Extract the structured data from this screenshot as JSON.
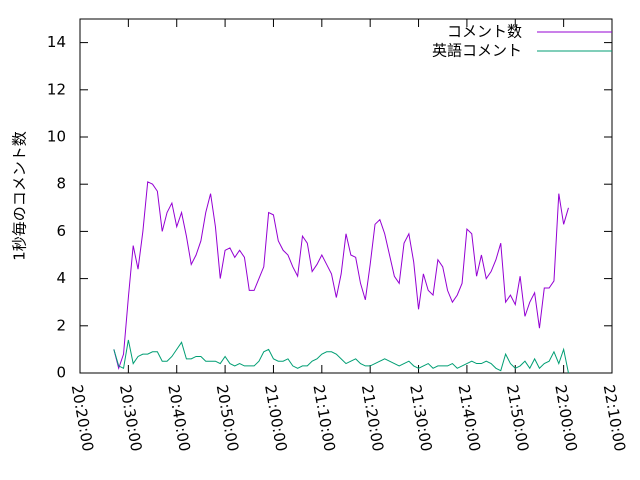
{
  "chart_data": {
    "type": "line",
    "y_label": "1秒毎のコメント数",
    "x": [
      "20:27:00",
      "20:28:00",
      "20:29:00",
      "20:30:00",
      "20:31:00",
      "20:32:00",
      "20:33:00",
      "20:34:00",
      "20:35:00",
      "20:36:00",
      "20:37:00",
      "20:38:00",
      "20:39:00",
      "20:40:00",
      "20:41:00",
      "20:42:00",
      "20:43:00",
      "20:44:00",
      "20:45:00",
      "20:46:00",
      "20:47:00",
      "20:48:00",
      "20:49:00",
      "20:50:00",
      "20:51:00",
      "20:52:00",
      "20:53:00",
      "20:54:00",
      "20:55:00",
      "20:56:00",
      "20:57:00",
      "20:58:00",
      "20:59:00",
      "21:00:00",
      "21:01:00",
      "21:02:00",
      "21:03:00",
      "21:04:00",
      "21:05:00",
      "21:06:00",
      "21:07:00",
      "21:08:00",
      "21:09:00",
      "21:10:00",
      "21:11:00",
      "21:12:00",
      "21:13:00",
      "21:14:00",
      "21:15:00",
      "21:16:00",
      "21:17:00",
      "21:18:00",
      "21:19:00",
      "21:20:00",
      "21:21:00",
      "21:22:00",
      "21:23:00",
      "21:24:00",
      "21:25:00",
      "21:26:00",
      "21:27:00",
      "21:28:00",
      "21:29:00",
      "21:30:00",
      "21:31:00",
      "21:32:00",
      "21:33:00",
      "21:34:00",
      "21:35:00",
      "21:36:00",
      "21:37:00",
      "21:38:00",
      "21:39:00",
      "21:40:00",
      "21:41:00",
      "21:42:00",
      "21:43:00",
      "21:44:00",
      "21:45:00",
      "21:46:00",
      "21:47:00",
      "21:48:00",
      "21:49:00",
      "21:50:00",
      "21:51:00",
      "21:52:00",
      "21:53:00",
      "21:54:00",
      "21:55:00",
      "21:56:00",
      "21:57:00",
      "21:58:00",
      "21:59:00",
      "22:00:00",
      "22:01:00"
    ],
    "series": [
      {
        "name": "コメント数",
        "color": "#9400d3",
        "values": [
          1.0,
          0.2,
          0.8,
          3.2,
          5.4,
          4.4,
          6.0,
          8.1,
          8.0,
          7.7,
          6.0,
          6.8,
          7.2,
          6.2,
          6.8,
          5.8,
          4.6,
          5.0,
          5.6,
          6.8,
          7.6,
          6.2,
          4.0,
          5.2,
          5.3,
          4.9,
          5.2,
          4.9,
          3.5,
          3.5,
          4.0,
          4.5,
          6.8,
          6.7,
          5.6,
          5.2,
          5.0,
          4.5,
          4.1,
          5.8,
          5.5,
          4.3,
          4.6,
          5.0,
          4.6,
          4.2,
          3.2,
          4.2,
          5.9,
          5.0,
          4.9,
          3.8,
          3.1,
          4.6,
          6.3,
          6.5,
          5.9,
          5.0,
          4.1,
          3.8,
          5.5,
          5.9,
          4.7,
          2.7,
          4.2,
          3.5,
          3.3,
          4.8,
          4.5,
          3.5,
          3.0,
          3.3,
          3.8,
          6.1,
          5.9,
          4.1,
          5.0,
          4.0,
          4.3,
          4.8,
          5.5,
          3.0,
          3.3,
          2.9,
          4.1,
          2.4,
          3.0,
          3.4,
          1.9,
          3.6,
          3.6,
          3.9,
          7.6,
          6.3,
          7.0
        ]
      },
      {
        "name": "英語コメント",
        "color": "#009e73",
        "values": [
          1.0,
          0.3,
          0.2,
          1.4,
          0.4,
          0.7,
          0.8,
          0.8,
          0.9,
          0.9,
          0.5,
          0.5,
          0.7,
          1.0,
          1.3,
          0.6,
          0.6,
          0.7,
          0.7,
          0.5,
          0.5,
          0.5,
          0.4,
          0.7,
          0.4,
          0.3,
          0.4,
          0.3,
          0.3,
          0.3,
          0.5,
          0.9,
          1.0,
          0.6,
          0.5,
          0.5,
          0.6,
          0.3,
          0.2,
          0.3,
          0.3,
          0.5,
          0.6,
          0.8,
          0.9,
          0.9,
          0.8,
          0.6,
          0.4,
          0.5,
          0.6,
          0.4,
          0.3,
          0.3,
          0.4,
          0.5,
          0.6,
          0.5,
          0.4,
          0.3,
          0.4,
          0.5,
          0.3,
          0.2,
          0.3,
          0.4,
          0.2,
          0.3,
          0.3,
          0.3,
          0.4,
          0.2,
          0.3,
          0.4,
          0.5,
          0.4,
          0.4,
          0.5,
          0.4,
          0.2,
          0.1,
          0.8,
          0.4,
          0.2,
          0.3,
          0.5,
          0.2,
          0.6,
          0.2,
          0.4,
          0.5,
          0.9,
          0.4,
          1.0,
          0.0
        ]
      }
    ],
    "xlim": [
      "20:20:00",
      "22:10:00"
    ],
    "xticks": [
      "20:20:00",
      "20:30:00",
      "20:40:00",
      "20:50:00",
      "21:00:00",
      "21:10:00",
      "21:20:00",
      "21:30:00",
      "21:40:00",
      "21:50:00",
      "22:00:00",
      "22:10:00"
    ],
    "ylim": [
      0,
      15
    ],
    "yticks": [
      0,
      2,
      4,
      6,
      8,
      10,
      12,
      14
    ],
    "legend": "top-right"
  }
}
